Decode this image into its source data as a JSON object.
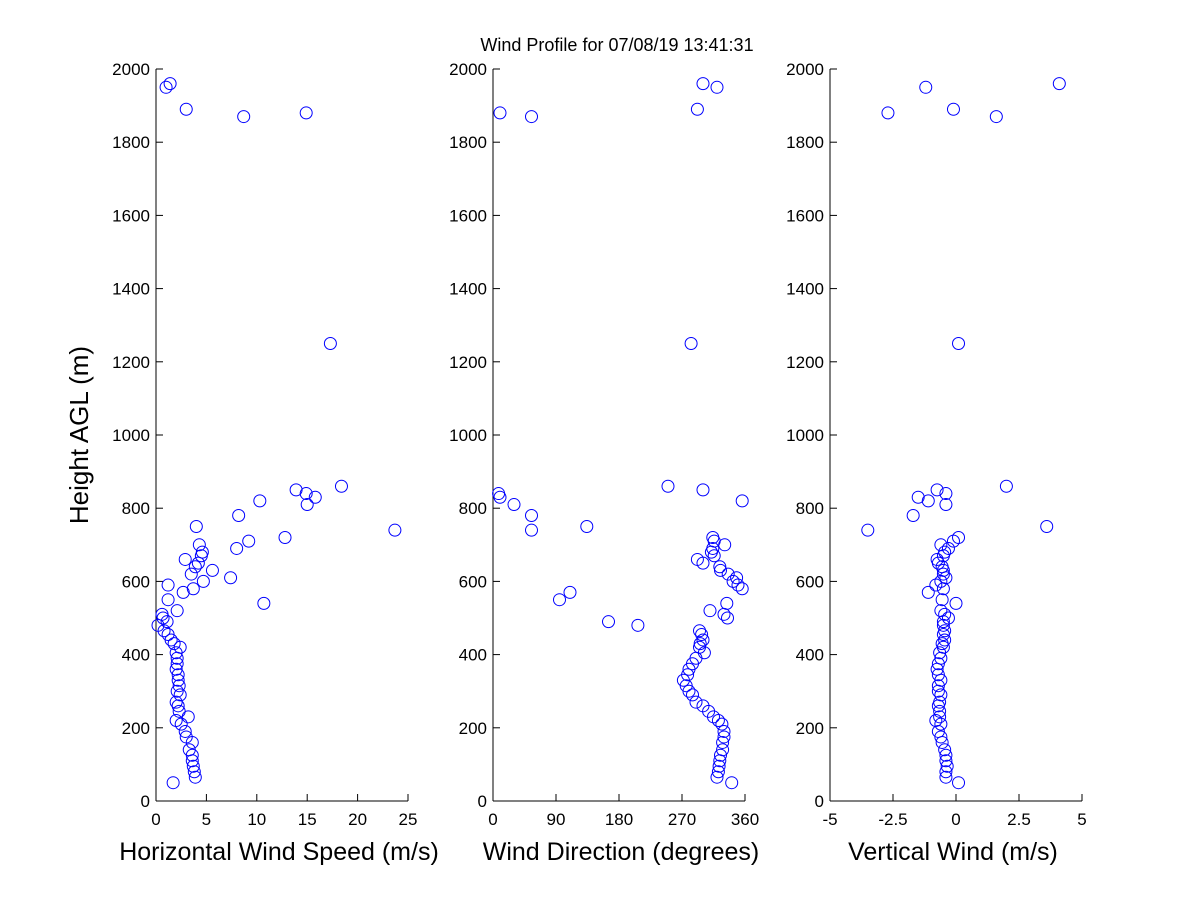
{
  "title": "Wind Profile for  07/08/19 13:41:31",
  "marker_color": "#0000ff",
  "chart_data": [
    {
      "type": "scatter",
      "xlabel": "Horizontal Wind Speed (m/s)",
      "ylabel": "Height AGL (m)",
      "xlim": [
        0,
        25
      ],
      "ylim": [
        0,
        2000
      ],
      "xticks": [
        "0",
        "5",
        "10",
        "15",
        "20",
        "25"
      ],
      "yticks": [
        "0",
        "200",
        "400",
        "600",
        "800",
        "1000",
        "1200",
        "1400",
        "1600",
        "1800",
        "2000"
      ],
      "y": [
        50,
        65,
        80,
        95,
        110,
        125,
        140,
        160,
        175,
        190,
        210,
        220,
        230,
        245,
        260,
        270,
        290,
        300,
        315,
        330,
        345,
        360,
        375,
        390,
        405,
        420,
        430,
        440,
        455,
        465,
        480,
        490,
        500,
        510,
        520,
        540,
        550,
        570,
        580,
        590,
        600,
        610,
        620,
        630,
        640,
        650,
        660,
        670,
        680,
        690,
        700,
        710,
        720,
        740,
        750,
        780,
        810,
        820,
        830,
        840,
        850,
        860,
        1250,
        1870,
        1880,
        1890,
        1950,
        1960
      ],
      "x": [
        1.7,
        3.9,
        3.8,
        3.7,
        3.6,
        3.6,
        3.3,
        3.6,
        3.0,
        2.9,
        2.5,
        2.0,
        3.2,
        2.3,
        2.2,
        2.0,
        2.4,
        2.1,
        2.3,
        2.2,
        2.2,
        2.0,
        2.1,
        2.1,
        2.0,
        2.4,
        1.8,
        1.5,
        1.2,
        0.8,
        0.2,
        1.1,
        0.7,
        0.6,
        2.1,
        10.7,
        1.2,
        2.7,
        3.7,
        1.2,
        4.7,
        7.4,
        3.5,
        5.6,
        3.9,
        4.2,
        2.9,
        4.5,
        4.6,
        8.0,
        4.3,
        9.2,
        12.8,
        23.7,
        4.0,
        8.2,
        15.0,
        10.3,
        15.8,
        14.9,
        13.9,
        18.4,
        17.3,
        8.7,
        14.9,
        3.0,
        1.0,
        1.4
      ]
    },
    {
      "type": "scatter",
      "xlabel": "Wind Direction (degrees)",
      "ylabel": "",
      "xlim": [
        0,
        360
      ],
      "ylim": [
        0,
        2000
      ],
      "xticks": [
        "0",
        "90",
        "180",
        "270",
        "360"
      ],
      "yticks": [
        "0",
        "200",
        "400",
        "600",
        "800",
        "1000",
        "1200",
        "1400",
        "1600",
        "1800",
        "2000"
      ],
      "y": [
        50,
        65,
        80,
        95,
        110,
        125,
        140,
        160,
        175,
        190,
        210,
        220,
        230,
        245,
        260,
        270,
        290,
        300,
        315,
        330,
        345,
        360,
        375,
        390,
        405,
        420,
        430,
        440,
        455,
        465,
        480,
        490,
        500,
        510,
        520,
        540,
        550,
        570,
        580,
        590,
        600,
        610,
        620,
        630,
        640,
        650,
        660,
        670,
        680,
        690,
        700,
        710,
        720,
        740,
        750,
        780,
        810,
        820,
        830,
        840,
        850,
        860,
        1250,
        1870,
        1880,
        1890,
        1950,
        1960
      ],
      "x": [
        341,
        320,
        322,
        323,
        324,
        325,
        328,
        328,
        330,
        330,
        327,
        322,
        315,
        308,
        300,
        290,
        285,
        280,
        276,
        272,
        278,
        280,
        285,
        290,
        302,
        295,
        296,
        300,
        298,
        295,
        207,
        165,
        335,
        330,
        310,
        334,
        95,
        110,
        356,
        350,
        343,
        348,
        336,
        325,
        324,
        300,
        292,
        316,
        312,
        314,
        331,
        316,
        314,
        55,
        134,
        55,
        30,
        356,
        10,
        8,
        300,
        250,
        283,
        55,
        10,
        292,
        320,
        300
      ]
    },
    {
      "type": "scatter",
      "xlabel": "Vertical Wind (m/s)",
      "ylabel": "",
      "xlim": [
        -5,
        5
      ],
      "ylim": [
        0,
        2000
      ],
      "xticks": [
        "-5",
        "-2.5",
        "0",
        "2.5",
        "5"
      ],
      "yticks": [
        "0",
        "200",
        "400",
        "600",
        "800",
        "1000",
        "1200",
        "1400",
        "1600",
        "1800",
        "2000"
      ],
      "y": [
        50,
        65,
        80,
        95,
        110,
        125,
        140,
        160,
        175,
        190,
        210,
        220,
        230,
        245,
        260,
        270,
        290,
        300,
        315,
        330,
        345,
        360,
        375,
        390,
        405,
        420,
        430,
        440,
        455,
        465,
        480,
        490,
        500,
        510,
        520,
        540,
        550,
        570,
        580,
        590,
        600,
        610,
        620,
        630,
        640,
        650,
        660,
        670,
        680,
        690,
        700,
        710,
        720,
        740,
        750,
        780,
        810,
        820,
        830,
        840,
        850,
        860,
        1250,
        1870,
        1880,
        1890,
        1950,
        1960
      ],
      "x": [
        0.1,
        -0.4,
        -0.4,
        -0.35,
        -0.4,
        -0.4,
        -0.45,
        -0.55,
        -0.6,
        -0.7,
        -0.6,
        -0.8,
        -0.65,
        -0.65,
        -0.7,
        -0.65,
        -0.6,
        -0.7,
        -0.7,
        -0.6,
        -0.7,
        -0.75,
        -0.7,
        -0.6,
        -0.65,
        -0.5,
        -0.55,
        -0.45,
        -0.5,
        -0.45,
        -0.5,
        -0.5,
        -0.3,
        -0.45,
        -0.6,
        0.0,
        -0.55,
        -1.1,
        -0.5,
        -0.8,
        -0.6,
        -0.4,
        -0.5,
        -0.5,
        -0.55,
        -0.7,
        -0.75,
        -0.5,
        -0.45,
        -0.3,
        -0.6,
        -0.1,
        0.1,
        -3.5,
        3.6,
        -1.7,
        -0.4,
        -1.1,
        -1.5,
        -0.4,
        -0.75,
        2.0,
        0.1,
        1.6,
        -2.7,
        -0.1,
        -1.2,
        4.1
      ]
    }
  ]
}
